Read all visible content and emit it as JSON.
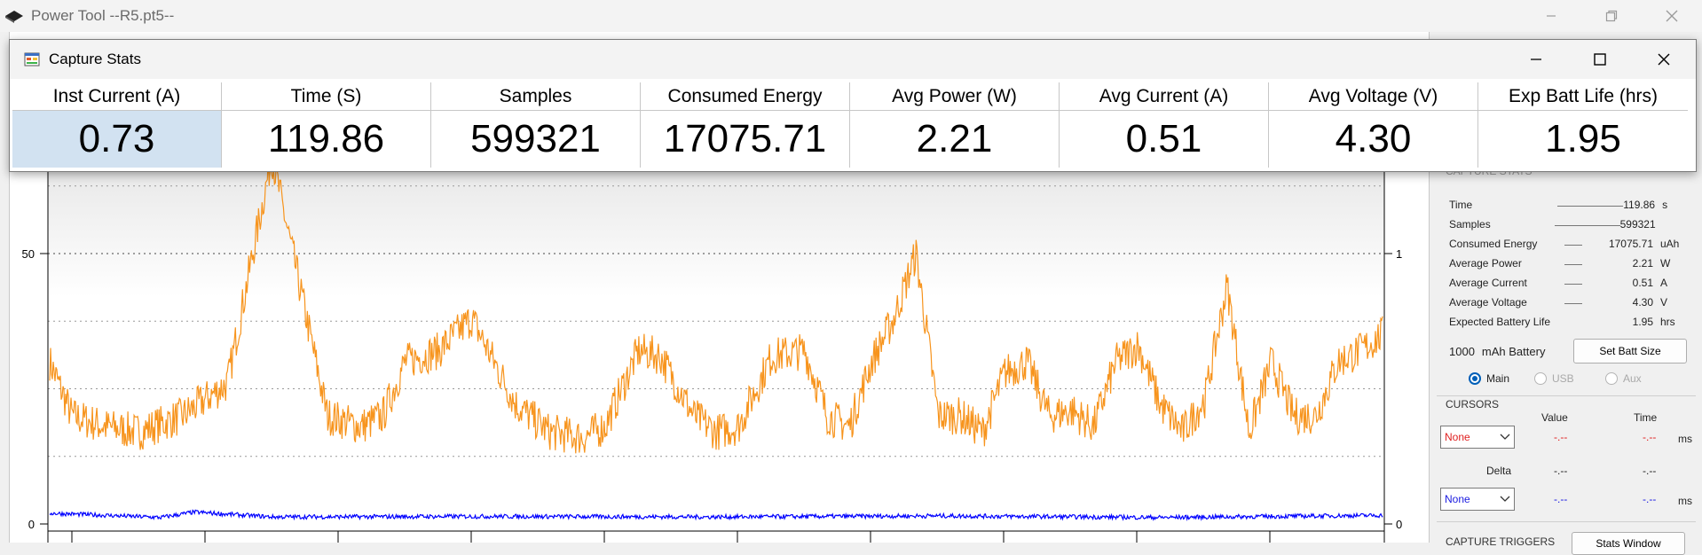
{
  "main_window": {
    "title": "Power Tool --R5.pt5--"
  },
  "dialog": {
    "title": "Capture Stats",
    "columns": [
      {
        "header": "Inst Current (A)",
        "value": "0.73"
      },
      {
        "header": "Time (S)",
        "value": "119.86"
      },
      {
        "header": "Samples",
        "value": "599321"
      },
      {
        "header": "Consumed Energy",
        "value": "17075.71"
      },
      {
        "header": "Avg Power (W)",
        "value": "2.21"
      },
      {
        "header": "Avg Current (A)",
        "value": "0.51"
      },
      {
        "header": "Avg Voltage (V)",
        "value": "4.30"
      },
      {
        "header": "Exp Batt Life (hrs)",
        "value": "1.95"
      }
    ]
  },
  "side_panel": {
    "capture_stats_label": "CAPTURE STATS",
    "stats": [
      {
        "label": "Time",
        "value": "119.86",
        "unit": "s"
      },
      {
        "label": "Samples",
        "value": "599321",
        "unit": ""
      },
      {
        "label": "Consumed Energy",
        "value": "17075.71",
        "unit": "uAh"
      },
      {
        "label": "Average Power",
        "value": "2.21",
        "unit": "W"
      },
      {
        "label": "Average Current",
        "value": "0.51",
        "unit": "A"
      },
      {
        "label": "Average Voltage",
        "value": "4.30",
        "unit": "V"
      },
      {
        "label": "Expected Battery Life",
        "value": "1.95",
        "unit": "hrs"
      }
    ],
    "battery": {
      "size": "1000",
      "unit_label": "mAh Battery",
      "set_button": "Set Batt Size"
    },
    "channels": [
      {
        "label": "Main",
        "selected": true,
        "enabled": true
      },
      {
        "label": "USB",
        "selected": false,
        "enabled": false
      },
      {
        "label": "Aux",
        "selected": false,
        "enabled": false
      }
    ],
    "cursors": {
      "title": "CURSORS",
      "value_header": "Value",
      "time_header": "Time",
      "delta_label": "Delta",
      "cursor1": {
        "select": "None",
        "value": "-.--",
        "time": "-.--",
        "unit": "ms"
      },
      "delta": {
        "value": "-.--",
        "time": "-.--"
      },
      "cursor2": {
        "select": "None",
        "value": "-.--",
        "time": "-.--",
        "unit": "ms"
      }
    },
    "capture_triggers_label": "CAPTURE TRIGGERS",
    "stats_window_button": "Stats Window"
  },
  "chart_data": {
    "type": "line",
    "left_axis_ticks": [
      "0",
      "50"
    ],
    "right_axis_ticks": [
      "0",
      "1"
    ],
    "series": [
      {
        "color": "#f7941d",
        "x": [
          0,
          2,
          5,
          8,
          12,
          16,
          20,
          25,
          28,
          30,
          32,
          35,
          38,
          42,
          45,
          48,
          50,
          53,
          55,
          58,
          60,
          62,
          65,
          68,
          70,
          72,
          74,
          76,
          78,
          80,
          82,
          84,
          86,
          88,
          90,
          92,
          94,
          96,
          98,
          100,
          102,
          104,
          106,
          108,
          110,
          112,
          114,
          116,
          118,
          120
        ],
        "y": [
          30,
          20,
          18,
          17,
          20,
          26,
          68,
          20,
          18,
          20,
          30,
          32,
          38,
          22,
          17,
          16,
          18,
          32,
          31,
          20,
          17,
          18,
          31,
          32,
          20,
          18,
          30,
          38,
          50,
          20,
          20,
          17,
          28,
          30,
          20,
          21,
          18,
          30,
          33,
          22,
          17,
          23,
          44,
          17,
          30,
          20,
          20,
          30,
          32,
          35
        ]
      },
      {
        "color": "#0000ff",
        "x": [
          0,
          10,
          13,
          20,
          40,
          60,
          80,
          100,
          120
        ],
        "y": [
          2,
          1.2,
          2.2,
          1.3,
          1.4,
          1.3,
          1.5,
          1.2,
          1.6
        ]
      }
    ]
  }
}
